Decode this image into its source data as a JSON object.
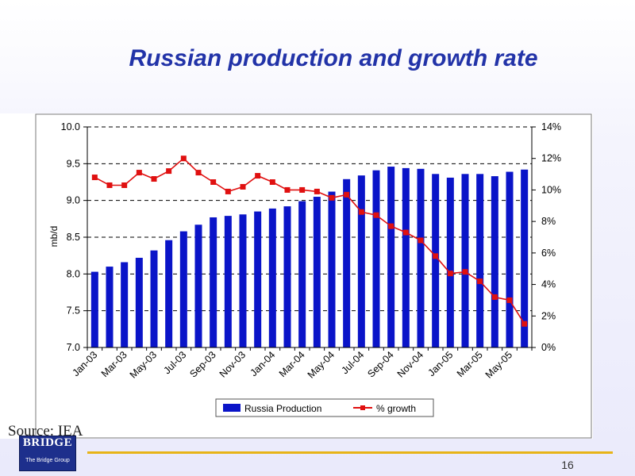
{
  "slide": {
    "title": "Russian production and growth rate",
    "source": "Source: IEA",
    "logo_text": "BRIDGE",
    "logo_subtext": "The Bridge Group",
    "page_number": "16",
    "accent_color": "#e7b418",
    "title_color": "#2233a8"
  },
  "chart_data": {
    "type": "bar",
    "title": "",
    "ylabel": "mb/d",
    "ylabel_right": "",
    "ylim": [
      7.0,
      10.0
    ],
    "yticks": [
      "7.0",
      "7.5",
      "8.0",
      "8.5",
      "9.0",
      "9.5",
      "10.0"
    ],
    "ylim_right": [
      0,
      14
    ],
    "yticks_right": [
      "0%",
      "2%",
      "4%",
      "6%",
      "8%",
      "10%",
      "12%",
      "14%"
    ],
    "grid": "dashed horizontal",
    "legend_placement": "bottom",
    "categories": [
      "Jan-03",
      "Feb-03",
      "Mar-03",
      "Apr-03",
      "May-03",
      "Jun-03",
      "Jul-03",
      "Aug-03",
      "Sep-03",
      "Oct-03",
      "Nov-03",
      "Dec-03",
      "Jan-04",
      "Feb-04",
      "Mar-04",
      "Apr-04",
      "May-04",
      "Jun-04",
      "Jul-04",
      "Aug-04",
      "Sep-04",
      "Oct-04",
      "Nov-04",
      "Dec-04",
      "Jan-05",
      "Feb-05",
      "Mar-05",
      "Apr-05",
      "May-05",
      "Jun-05"
    ],
    "xtick_labels": [
      "Jan-03",
      "Mar-03",
      "May-03",
      "Jul-03",
      "Sep-03",
      "Nov-03",
      "Jan-04",
      "Mar-04",
      "May-04",
      "Jul-04",
      "Sep-04",
      "Nov-04",
      "Jan-05",
      "Mar-05",
      "May-05"
    ],
    "series": [
      {
        "name": "Russia Production",
        "type": "bar",
        "axis": "left",
        "color": "#0a14c8",
        "values": [
          8.03,
          8.1,
          8.16,
          8.22,
          8.32,
          8.46,
          8.58,
          8.67,
          8.77,
          8.79,
          8.81,
          8.85,
          8.89,
          8.92,
          8.99,
          9.05,
          9.12,
          9.29,
          9.34,
          9.41,
          9.46,
          9.44,
          9.43,
          9.36,
          9.31,
          9.36,
          9.36,
          9.33,
          9.39,
          9.42
        ]
      },
      {
        "name": "% growth",
        "type": "line",
        "axis": "right",
        "color": "#e01010",
        "values": [
          10.8,
          10.3,
          10.3,
          11.1,
          10.7,
          11.2,
          12.0,
          11.1,
          10.5,
          9.9,
          10.2,
          10.9,
          10.5,
          10.0,
          10.0,
          9.9,
          9.5,
          9.7,
          8.6,
          8.4,
          7.7,
          7.3,
          6.8,
          5.8,
          4.7,
          4.8,
          4.2,
          3.2,
          3.0,
          1.5
        ]
      }
    ]
  }
}
